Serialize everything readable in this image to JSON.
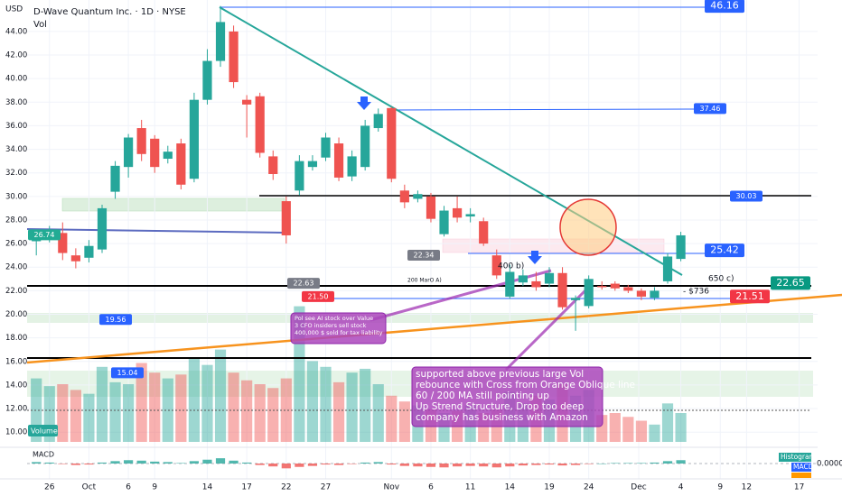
{
  "header": {
    "currency": "USD",
    "title": "D-Wave Quantum Inc. · 1D · NYSE",
    "volume_label": "Vol"
  },
  "chart_data": {
    "type": "candlestick",
    "ylim": [
      8.79,
      46.67
    ],
    "yticks": [
      {
        "value": 10,
        "label": "10.00"
      },
      {
        "value": 12,
        "label": "12.00"
      },
      {
        "value": 14,
        "label": "14.00"
      },
      {
        "value": 16,
        "label": "16.00"
      },
      {
        "value": 18,
        "label": "18.00"
      },
      {
        "value": 20,
        "label": "20.00"
      },
      {
        "value": 22,
        "label": "22.00"
      },
      {
        "value": 24,
        "label": "24.00"
      },
      {
        "value": 26,
        "label": "26.00"
      },
      {
        "value": 28,
        "label": "28.00"
      },
      {
        "value": 30,
        "label": "30.00"
      },
      {
        "value": 32,
        "label": "32.00"
      },
      {
        "value": 34,
        "label": "34.00"
      },
      {
        "value": 36,
        "label": "36.00"
      },
      {
        "value": 38,
        "label": "38.00"
      },
      {
        "value": 40,
        "label": "40.00"
      },
      {
        "value": 42,
        "label": "42.00"
      },
      {
        "value": 44,
        "label": "44.00"
      }
    ],
    "xlim": [
      -0.7,
      59.4
    ],
    "xticks": [
      {
        "value": 1,
        "label": "26"
      },
      {
        "value": 4,
        "label": "Oct"
      },
      {
        "value": 7,
        "label": "6"
      },
      {
        "value": 9,
        "label": "9"
      },
      {
        "value": 13,
        "label": "14"
      },
      {
        "value": 16,
        "label": "17"
      },
      {
        "value": 19,
        "label": "22"
      },
      {
        "value": 22,
        "label": "27"
      },
      {
        "value": 27,
        "label": "Nov"
      },
      {
        "value": 30,
        "label": "6"
      },
      {
        "value": 33,
        "label": "11"
      },
      {
        "value": 36,
        "label": "14"
      },
      {
        "value": 39,
        "label": "19"
      },
      {
        "value": 42,
        "label": "24"
      },
      {
        "value": 45.8,
        "label": "Dec"
      },
      {
        "value": 49,
        "label": "4"
      },
      {
        "value": 52,
        "label": "9"
      },
      {
        "value": 54,
        "label": "12"
      },
      {
        "value": 58,
        "label": "17"
      }
    ],
    "colors": {
      "up": "#26a69a",
      "down": "#ef5350"
    },
    "open": [
      26.2,
      26.5,
      26.9,
      25.0,
      24.8,
      25.5,
      30.4,
      32.5,
      35.8,
      34.9,
      33.2,
      34.5,
      31.5,
      38.2,
      41.5,
      44.0,
      38.2,
      38.5,
      33.4,
      29.6,
      30.5,
      32.5,
      33.3,
      34.5,
      31.7,
      32.5,
      35.8,
      37.5,
      30.5,
      29.8,
      30.0,
      26.8,
      29.0,
      28.3,
      27.9,
      25.0,
      21.5,
      22.7,
      22.8,
      22.6,
      23.5,
      21.2,
      20.7,
      22.4,
      22.6,
      22.3,
      22.0,
      21.4,
      22.8,
      24.7
    ],
    "high": [
      26.9,
      27.5,
      27.8,
      25.6,
      26.3,
      29.3,
      33.0,
      35.3,
      36.5,
      35.2,
      34.3,
      34.9,
      38.8,
      42.5,
      46.16,
      44.5,
      38.6,
      38.8,
      33.9,
      30.0,
      33.5,
      33.5,
      35.4,
      35.0,
      33.9,
      36.5,
      37.46,
      37.6,
      31.0,
      30.5,
      30.3,
      29.2,
      30.0,
      29.0,
      28.2,
      25.5,
      24.2,
      23.8,
      23.6,
      24.0,
      24.0,
      21.6,
      23.3,
      22.8,
      22.8,
      22.5,
      22.2,
      22.3,
      25.2,
      27.0
    ],
    "low": [
      25.0,
      26.1,
      24.6,
      23.9,
      24.4,
      25.2,
      29.8,
      31.6,
      33.0,
      32.0,
      32.8,
      30.6,
      31.2,
      37.8,
      41.0,
      39.2,
      35.0,
      33.3,
      31.4,
      26.0,
      30.1,
      32.2,
      33.0,
      31.3,
      31.3,
      32.2,
      35.5,
      31.2,
      29.0,
      29.5,
      27.8,
      26.6,
      27.8,
      27.8,
      25.8,
      23.0,
      21.3,
      22.4,
      22.0,
      22.3,
      20.4,
      18.6,
      20.5,
      22.1,
      22.0,
      21.8,
      21.2,
      21.2,
      22.6,
      24.5
    ],
    "close": [
      26.6,
      26.9,
      25.2,
      24.5,
      25.8,
      29.0,
      32.6,
      35.0,
      33.6,
      32.5,
      33.8,
      31.0,
      38.2,
      41.5,
      44.8,
      39.7,
      37.8,
      33.7,
      31.9,
      26.7,
      33.0,
      33.0,
      35.0,
      31.6,
      33.4,
      36.0,
      37.0,
      31.5,
      29.5,
      30.2,
      28.1,
      28.8,
      28.2,
      28.5,
      26.0,
      23.3,
      23.6,
      23.3,
      22.3,
      23.5,
      20.6,
      21.4,
      23.0,
      22.3,
      22.2,
      22.0,
      21.5,
      22.0,
      24.9,
      26.7
    ],
    "volume": {
      "label": "Volume",
      "ylim": [
        0,
        150
      ],
      "values": [
        66,
        58,
        60,
        54,
        50,
        78,
        62,
        60,
        82,
        72,
        66,
        70,
        88,
        80,
        96,
        72,
        64,
        60,
        56,
        66,
        141,
        84,
        78,
        62,
        72,
        76,
        60,
        48,
        42,
        38,
        34,
        30,
        32,
        38,
        30,
        34,
        52,
        40,
        48,
        44,
        60,
        48,
        54,
        28,
        30,
        26,
        22,
        18,
        40,
        30
      ]
    },
    "macd": {
      "label": "MACD",
      "ylim": [
        -3,
        3
      ],
      "yticks": [
        {
          "value": 0,
          "label": "0.0000"
        }
      ],
      "legend": [
        "Histogram",
        "MACD"
      ],
      "histogram": [
        0.3,
        0.2,
        -0.1,
        -0.3,
        -0.2,
        0.2,
        0.5,
        0.7,
        0.6,
        0.4,
        0.3,
        0.1,
        0.5,
        0.8,
        1.1,
        0.6,
        0.2,
        -0.3,
        -0.6,
        -1.0,
        -0.7,
        -0.5,
        -0.2,
        -0.3,
        -0.1,
        0.2,
        0.3,
        -0.2,
        -0.5,
        -0.6,
        -0.7,
        -0.8,
        -0.6,
        -0.5,
        -0.6,
        -0.8,
        -0.6,
        -0.4,
        -0.3,
        -0.2,
        -0.4,
        -0.3,
        -0.1,
        0.0,
        0.1,
        0.1,
        0.1,
        0.2,
        0.5,
        0.7
      ]
    },
    "price_labels": [
      {
        "value": 46.16,
        "color": "#2962ff"
      },
      {
        "value": 37.46,
        "color": "#2962ff"
      },
      {
        "value": 30.03,
        "color": "#2962ff"
      },
      {
        "value": 25.42,
        "color": "#2962ff"
      },
      {
        "value": 22.65,
        "color": "#089981"
      },
      {
        "value": 21.51,
        "color": "#f23645"
      },
      {
        "value": 26.74,
        "color": "#22ab94"
      },
      {
        "value": 22.34,
        "color": "#787b86"
      },
      {
        "value": 22.63,
        "color": "#787b86"
      },
      {
        "value": 21.5,
        "label": "21.50",
        "color": "#f23645"
      },
      {
        "value": 19.56,
        "color": "#2962ff"
      },
      {
        "value": 15.04,
        "color": "#2962ff"
      }
    ],
    "annotations": [
      "650 c)",
      "- $736",
      "400 b)",
      "200 MarO A)"
    ],
    "notes": [
      [
        "Pol see AI stock over Value",
        "3 CFO insiders sell stock",
        "400,000 $ sold for tax liability"
      ],
      [
        "supported above previous large Vol",
        "rebounce with Cross from Orange Oblique line",
        "60 / 200 MA still pointing up",
        "Up Strend Structure, Drop too deep",
        "company has business with Amazon"
      ]
    ]
  }
}
